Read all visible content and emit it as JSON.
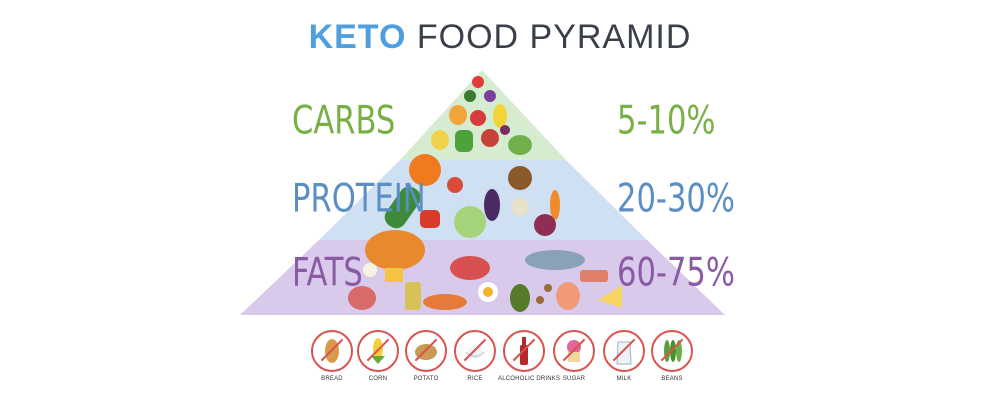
{
  "title": {
    "keto": "KETO",
    "rest": "FOOD PYRAMID"
  },
  "rows": [
    {
      "label": "CARBS",
      "percent": "5-10%"
    },
    {
      "label": "PROTEIN",
      "percent": "20-30%"
    },
    {
      "label": "FATS",
      "percent": "60-75%"
    }
  ],
  "avoid_icons": [
    {
      "label": "BREAD",
      "icon": "bread-icon"
    },
    {
      "label": "CORN",
      "icon": "corn-icon"
    },
    {
      "label": "POTATO",
      "icon": "potato-icon"
    },
    {
      "label": "RICE",
      "icon": "rice-icon"
    },
    {
      "label": "ALCOHOLIC DRINKS",
      "icon": "alcohol-bottle-icon"
    },
    {
      "label": "SUGAR",
      "icon": "sugar-icon"
    },
    {
      "label": "MILK",
      "icon": "milk-icon"
    },
    {
      "label": "BEANS",
      "icon": "beans-icon"
    }
  ],
  "colors": {
    "carbs_band": "#d6ecd0",
    "protein_band": "#cfe0f2",
    "fats_band": "#d9c9ea",
    "avoid_ring": "#d9534f"
  }
}
